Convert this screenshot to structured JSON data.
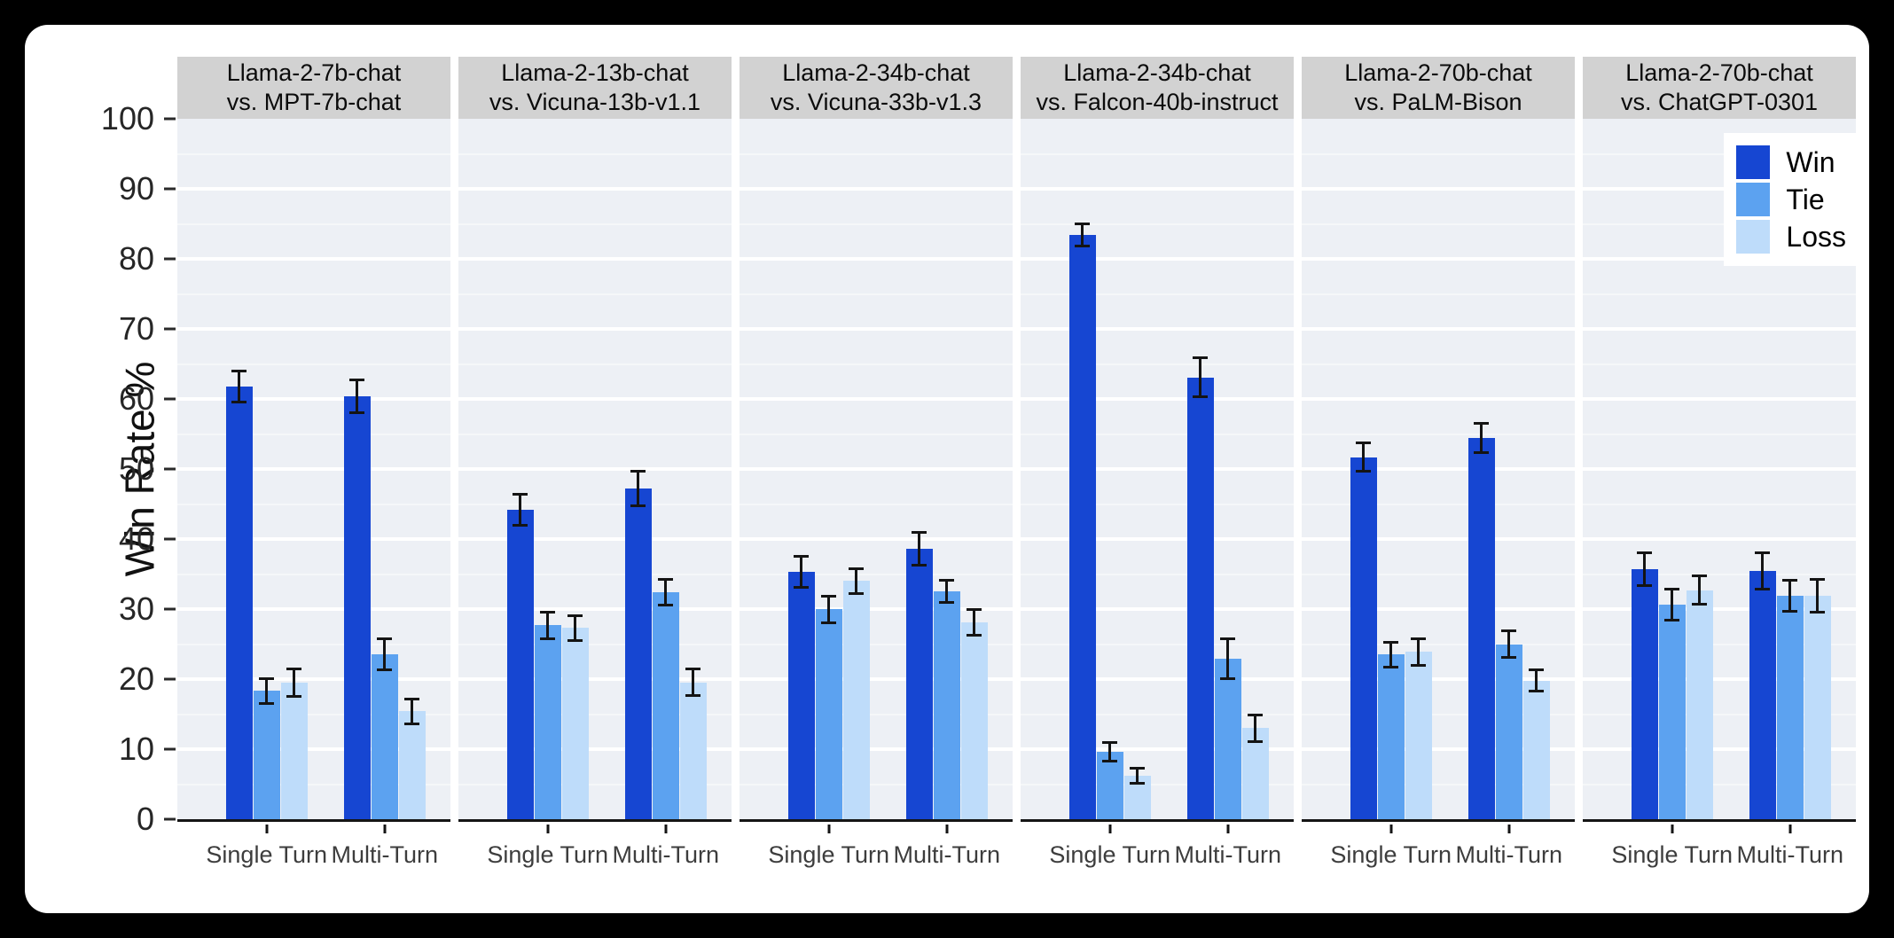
{
  "colors": {
    "frame_background": "#000000",
    "card_background": "#ffffff",
    "panel_background": "#edf0f5",
    "panel_header_background": "#d2d2d2",
    "gridline": "#ffffff",
    "axis_line": "#151515",
    "error_bar": "#141414",
    "win": "#1646d2",
    "tie": "#5ca2f0",
    "loss": "#bedcfa"
  },
  "figure": {
    "ylabel": "Win Rate %",
    "y_ticks": [
      0,
      10,
      20,
      30,
      40,
      50,
      60,
      70,
      80,
      90,
      100
    ],
    "legend": {
      "items": [
        {
          "label": "Win",
          "color": "#1646d2"
        },
        {
          "label": "Tie",
          "color": "#5ca2f0"
        },
        {
          "label": "Loss",
          "color": "#bedcfa"
        }
      ]
    }
  },
  "chart_data": {
    "type": "bar",
    "title": "",
    "xlabel": "",
    "ylabel": "Win Rate %",
    "ylim": [
      0,
      100
    ],
    "grid": "white major gridlines every 10, faint minor lines every 5",
    "legend_position": "top-right",
    "error_bars": true,
    "categories": [
      "Single Turn",
      "Multi-Turn"
    ],
    "series_names": [
      "Win",
      "Tie",
      "Loss"
    ],
    "panels": [
      {
        "title_line1": "Llama-2-7b-chat",
        "title_line2": "vs. MPT-7b-chat",
        "series": [
          {
            "name": "Win",
            "values": [
              61.8,
              60.4
            ],
            "errors": [
              2.2,
              2.3
            ]
          },
          {
            "name": "Tie",
            "values": [
              18.3,
              23.5
            ],
            "errors": [
              1.8,
              2.2
            ]
          },
          {
            "name": "Loss",
            "values": [
              19.5,
              15.4
            ],
            "errors": [
              2.0,
              1.8
            ]
          }
        ]
      },
      {
        "title_line1": "Llama-2-13b-chat",
        "title_line2": "vs. Vicuna-13b-v1.1",
        "series": [
          {
            "name": "Win",
            "values": [
              44.2,
              47.2
            ],
            "errors": [
              2.2,
              2.5
            ]
          },
          {
            "name": "Tie",
            "values": [
              27.7,
              32.4
            ],
            "errors": [
              1.9,
              1.8
            ]
          },
          {
            "name": "Loss",
            "values": [
              27.3,
              19.5
            ],
            "errors": [
              1.8,
              1.9
            ]
          }
        ]
      },
      {
        "title_line1": "Llama-2-34b-chat",
        "title_line2": "vs. Vicuna-33b-v1.3",
        "series": [
          {
            "name": "Win",
            "values": [
              35.3,
              38.6
            ],
            "errors": [
              2.2,
              2.3
            ]
          },
          {
            "name": "Tie",
            "values": [
              30.0,
              32.5
            ],
            "errors": [
              1.9,
              1.6
            ]
          },
          {
            "name": "Loss",
            "values": [
              34.0,
              28.1
            ],
            "errors": [
              1.8,
              1.8
            ]
          }
        ]
      },
      {
        "title_line1": "Llama-2-34b-chat",
        "title_line2": "vs. Falcon-40b-instruct",
        "series": [
          {
            "name": "Win",
            "values": [
              83.4,
              63.1
            ],
            "errors": [
              1.6,
              2.8
            ]
          },
          {
            "name": "Tie",
            "values": [
              9.6,
              22.9
            ],
            "errors": [
              1.3,
              2.8
            ]
          },
          {
            "name": "Loss",
            "values": [
              6.2,
              13.0
            ],
            "errors": [
              1.1,
              1.9
            ]
          }
        ]
      },
      {
        "title_line1": "Llama-2-70b-chat",
        "title_line2": "vs. PaLM-Bison",
        "series": [
          {
            "name": "Win",
            "values": [
              51.7,
              54.4
            ],
            "errors": [
              2.0,
              2.1
            ]
          },
          {
            "name": "Tie",
            "values": [
              23.5,
              25.0
            ],
            "errors": [
              1.8,
              1.9
            ]
          },
          {
            "name": "Loss",
            "values": [
              23.9,
              19.8
            ],
            "errors": [
              1.9,
              1.5
            ]
          }
        ]
      },
      {
        "title_line1": "Llama-2-70b-chat",
        "title_line2": "vs. ChatGPT-0301",
        "series": [
          {
            "name": "Win",
            "values": [
              35.7,
              35.5
            ],
            "errors": [
              2.3,
              2.6
            ]
          },
          {
            "name": "Tie",
            "values": [
              30.6,
              31.9
            ],
            "errors": [
              2.2,
              2.2
            ]
          },
          {
            "name": "Loss",
            "values": [
              32.7,
              31.9
            ],
            "errors": [
              2.0,
              2.3
            ]
          }
        ]
      }
    ]
  }
}
